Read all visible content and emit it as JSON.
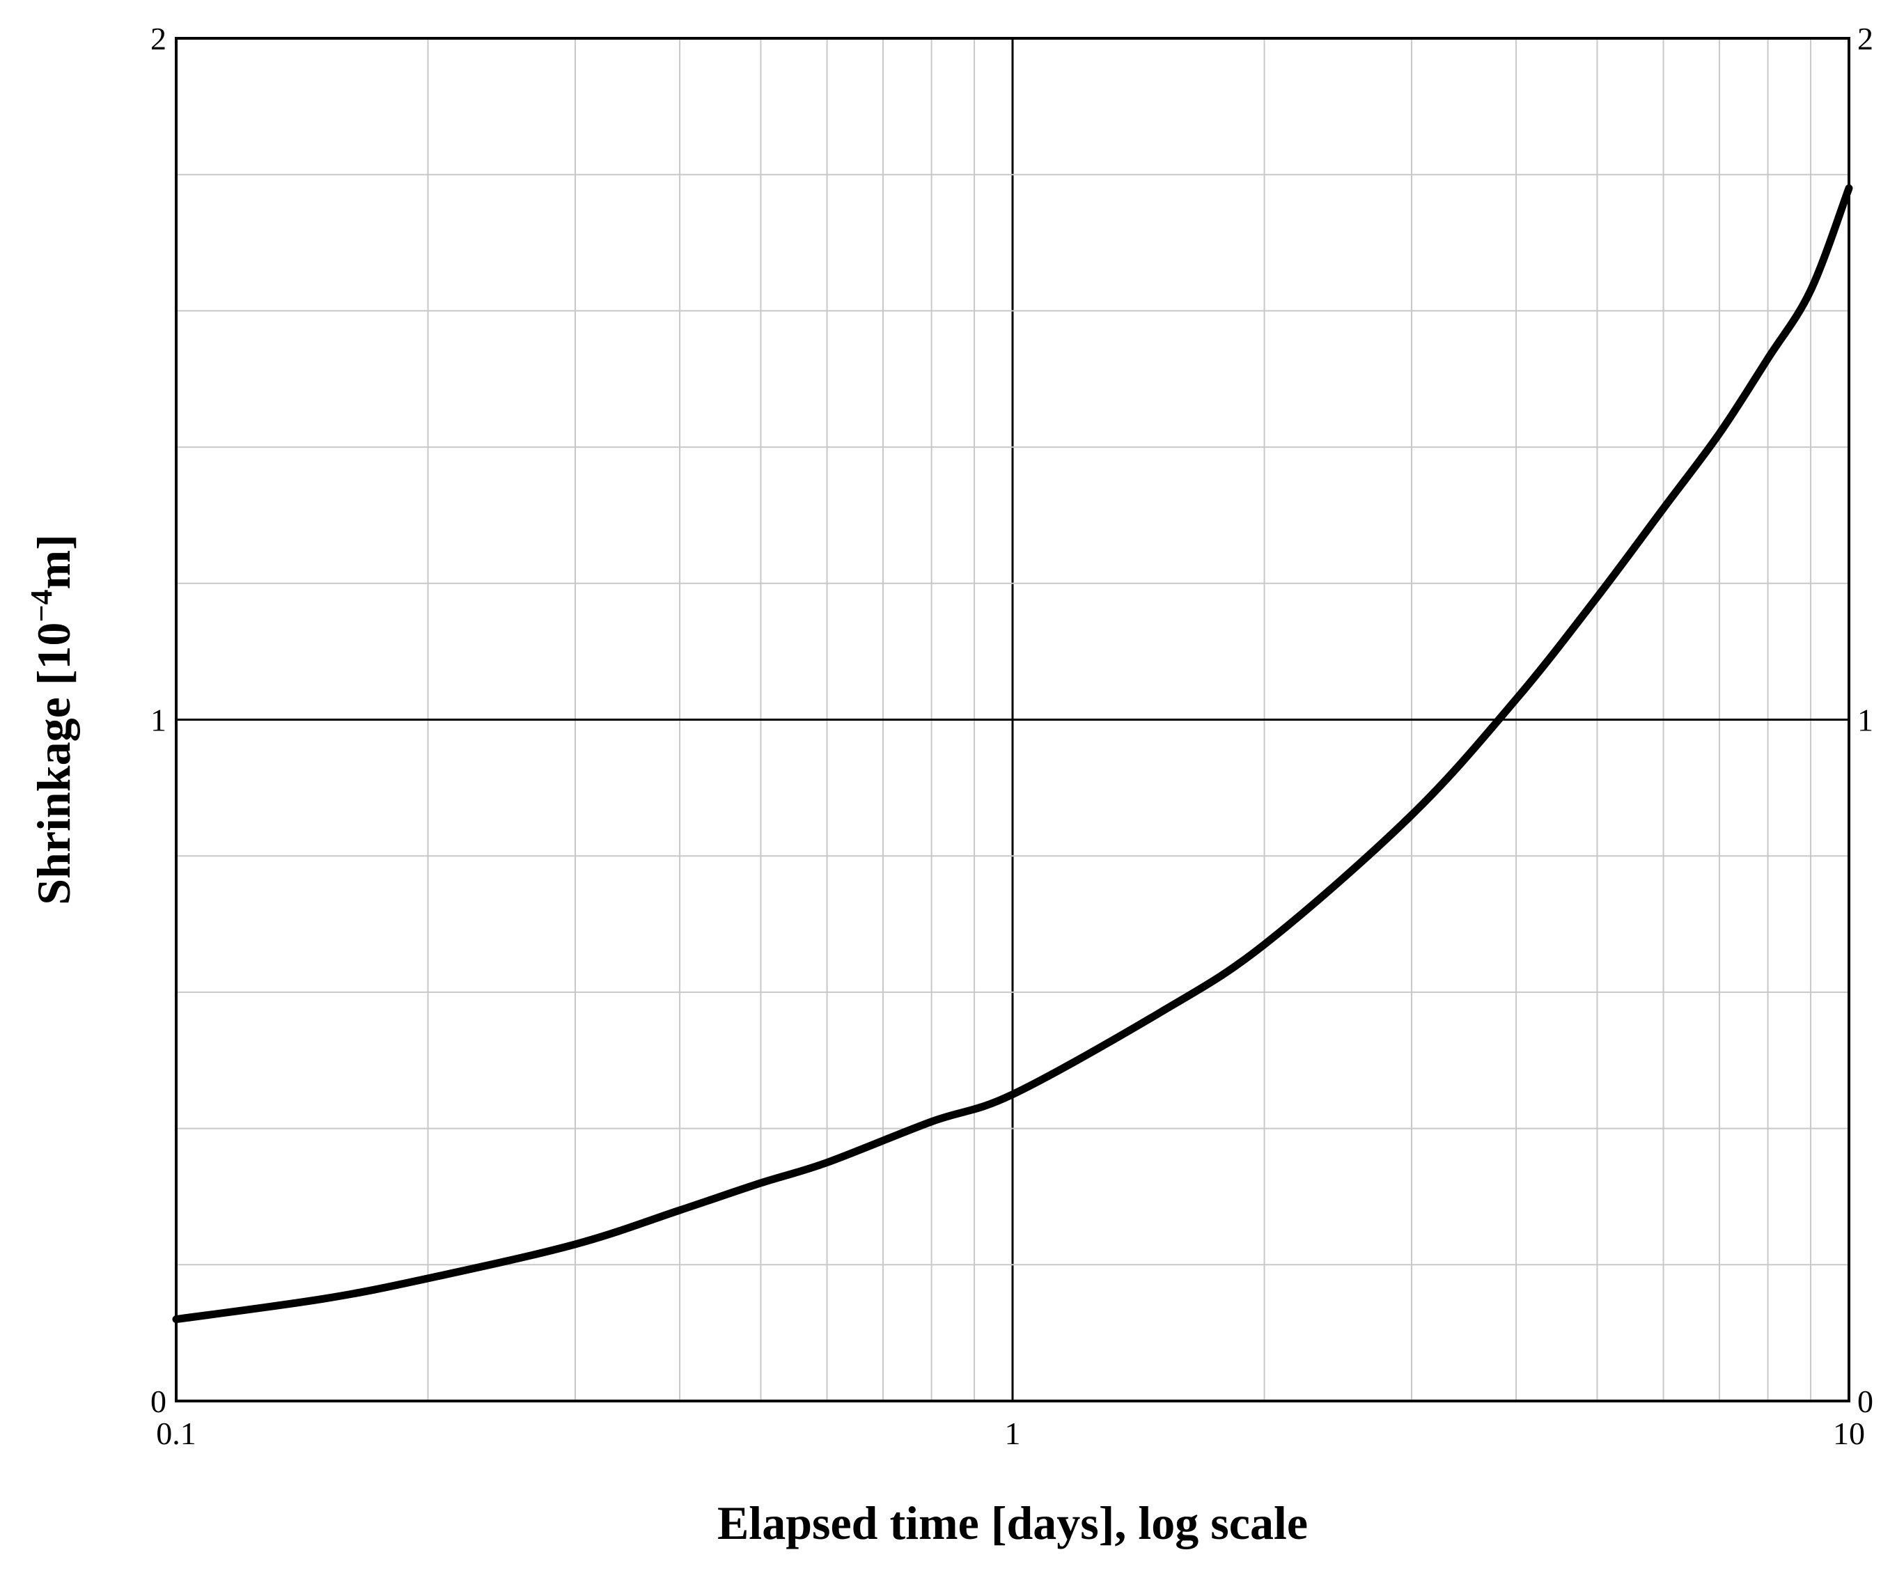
{
  "chart_data": {
    "type": "line",
    "xlabel": "Elapsed time [days], log scale",
    "ylabel": {
      "prefix": "Shrinkage [10",
      "exponent": "−4",
      "suffix": "m]"
    },
    "x_scale": "log",
    "xlim": [
      0.1,
      10
    ],
    "ylim": [
      0,
      2
    ],
    "x_ticks": [
      "0.1",
      "1",
      "10"
    ],
    "y_ticks_left": [
      "0",
      "1",
      "2"
    ],
    "y_ticks_right": [
      "0",
      "1",
      "2"
    ],
    "grid": true,
    "y_minor_step": 0.2,
    "series": [
      {
        "color": "#000000",
        "x": [
          0.1,
          0.15,
          0.2,
          0.3,
          0.4,
          0.5,
          0.6,
          0.8,
          1.0,
          1.5,
          2.0,
          3.0,
          4.0,
          5.0,
          6.0,
          7.0,
          8.0,
          9.0,
          10.0
        ],
        "y": [
          0.12,
          0.15,
          0.18,
          0.23,
          0.28,
          0.32,
          0.35,
          0.41,
          0.45,
          0.57,
          0.67,
          0.86,
          1.03,
          1.18,
          1.31,
          1.42,
          1.53,
          1.63,
          1.78
        ]
      }
    ]
  }
}
